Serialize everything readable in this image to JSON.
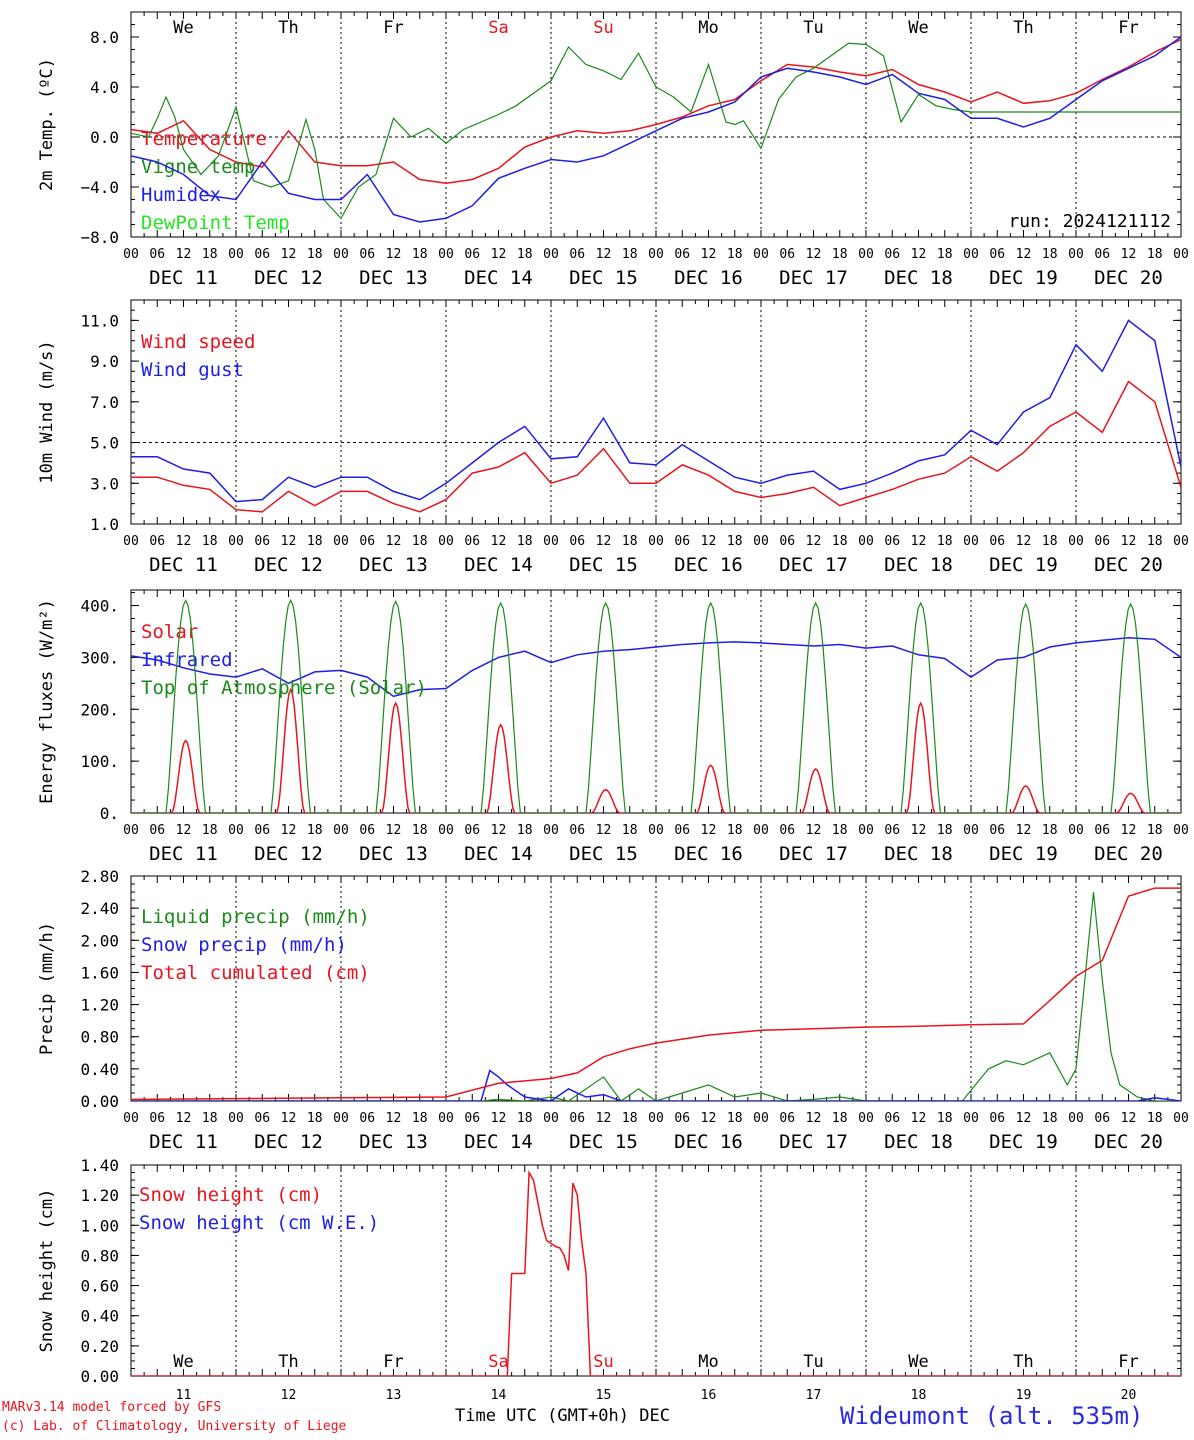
{
  "colors": {
    "red": "#e8141e",
    "green": "#1a8a1a",
    "blue": "#1e1ee6",
    "lime": "#22e622",
    "black": "#000000",
    "title": "#2a2ae0"
  },
  "days": {
    "weekdays": [
      "We",
      "Th",
      "Fr",
      "Sa",
      "Su",
      "Mo",
      "Tu",
      "We",
      "Th",
      "Fr"
    ],
    "weekend_flags": [
      false,
      false,
      false,
      true,
      true,
      false,
      false,
      false,
      false,
      false
    ],
    "dates": [
      "DEC 11",
      "DEC 12",
      "DEC 13",
      "DEC 14",
      "DEC 15",
      "DEC 16",
      "DEC 17",
      "DEC 18",
      "DEC 19",
      "DEC 20"
    ],
    "day_numbers": [
      "11",
      "12",
      "13",
      "14",
      "15",
      "16",
      "17",
      "18",
      "19",
      "20"
    ],
    "hour_labels": [
      "00",
      "06",
      "12",
      "18"
    ],
    "final_hour_label": "00"
  },
  "footer": {
    "model_line1": "MARv3.14 model forced by GFS",
    "model_line2": "(c) Lab. of Climatology, University of Liege",
    "x_axis_title": "Time UTC (GMT+0h)",
    "x_axis_month": "DEC",
    "station": "Wideumont (alt. 535m)"
  },
  "chart_data": [
    {
      "type": "line",
      "ylabel": "2m Temp. (ºC)",
      "ylim": [
        -8,
        10
      ],
      "yticks": [
        -8,
        -4,
        0,
        4,
        8
      ],
      "ytick_labels": [
        "−8.0",
        "−4.0",
        "0.0",
        "4.0",
        "8.0"
      ],
      "ref_line": 0,
      "run_label": "run: 2024121112",
      "series": [
        {
          "name": "Temperature",
          "color": "red",
          "x": [
            0,
            6,
            12,
            18,
            24,
            30,
            36,
            42,
            48,
            54,
            60,
            66,
            72,
            78,
            84,
            90,
            96,
            102,
            108,
            114,
            120,
            126,
            132,
            138,
            144,
            150,
            156,
            162,
            168,
            174,
            180,
            186,
            192,
            198,
            204,
            210,
            216,
            222,
            228,
            234,
            240
          ],
          "values": [
            0.6,
            0.3,
            1.3,
            -1.0,
            -2.0,
            -2.4,
            0.5,
            -2.0,
            -2.3,
            -2.3,
            -2.0,
            -3.4,
            -3.7,
            -3.4,
            -2.5,
            -0.8,
            0.0,
            0.5,
            0.3,
            0.5,
            1.0,
            1.6,
            2.5,
            3.0,
            4.5,
            5.8,
            5.6,
            5.2,
            4.9,
            5.4,
            4.2,
            3.6,
            2.8,
            3.6,
            2.7,
            2.9,
            3.5,
            4.6,
            5.6,
            6.8,
            7.8
          ]
        },
        {
          "name": "Vigne temp",
          "color": "green",
          "x": [
            0,
            6,
            9,
            12,
            15,
            18,
            24,
            30,
            36,
            42,
            48,
            54,
            60,
            63,
            66,
            72,
            78,
            84,
            90,
            96,
            102,
            108,
            114,
            120,
            126,
            132,
            138,
            144,
            150,
            156,
            162,
            168,
            174,
            180,
            186,
            192,
            198,
            204,
            207,
            210,
            216,
            222,
            228,
            234,
            240,
            246,
            252,
            258,
            264,
            270,
            276,
            282,
            288,
            294,
            300,
            306,
            312,
            318,
            324,
            330,
            336,
            342,
            348,
            354,
            360
          ],
          "values": [
            0.3,
            0.0,
            1.5,
            3.2,
            1.6,
            -1.0,
            -3.0,
            -1.5,
            2.4,
            -3.5,
            -4.0,
            -3.5,
            1.4,
            -1.0,
            -5.0,
            -6.5,
            -4.0,
            -3.0,
            1.5,
            0.0,
            0.7,
            -0.5,
            0.6,
            1.2,
            1.8,
            2.5,
            3.5,
            4.5,
            7.2,
            5.8,
            5.3,
            4.6,
            6.7,
            4.0,
            3.2,
            2.0,
            5.8,
            1.2,
            1.0,
            1.3,
            -0.9,
            3.0,
            4.8,
            5.5,
            6.5,
            7.5,
            7.4,
            6.5,
            1.2,
            3.4,
            2.5,
            2.2,
            2.0,
            2.0,
            2.0,
            2.0,
            2.0,
            2.0,
            2.0,
            2.0,
            2.0,
            2.0,
            2.0,
            2.0,
            2.0
          ],
          "x_max": 354
        },
        {
          "name": "Humidex",
          "color": "blue",
          "x": [
            0,
            6,
            12,
            18,
            24,
            30,
            36,
            42,
            48,
            54,
            60,
            66,
            72,
            78,
            84,
            90,
            96,
            102,
            108,
            114,
            120,
            126,
            132,
            138,
            144,
            150,
            156,
            162,
            168,
            174,
            180,
            186,
            192,
            198,
            204,
            210,
            216,
            222,
            228,
            234,
            240
          ],
          "values": [
            -1.5,
            -2.0,
            -3.0,
            -4.7,
            -5.0,
            -2.0,
            -4.5,
            -5.0,
            -5.0,
            -3.0,
            -6.2,
            -6.8,
            -6.5,
            -5.5,
            -3.3,
            -2.5,
            -1.8,
            -2.0,
            -1.5,
            -0.5,
            0.5,
            1.5,
            2.0,
            2.8,
            4.8,
            5.5,
            5.2,
            4.8,
            4.2,
            5.0,
            3.5,
            3.0,
            1.5,
            1.5,
            0.8,
            1.5,
            3.0,
            4.5,
            5.5,
            6.5,
            8.0
          ]
        },
        {
          "name": "DewPoint Temp",
          "color": "lime",
          "x": [],
          "values": []
        }
      ]
    },
    {
      "type": "line",
      "ylabel": "10m Wind (m/s)",
      "ylim": [
        1,
        12
      ],
      "yticks": [
        1,
        3,
        5,
        7,
        9,
        11
      ],
      "ytick_labels": [
        "1.0",
        "3.0",
        "5.0",
        "7.0",
        "9.0",
        "11.0"
      ],
      "ref_line": 5,
      "series": [
        {
          "name": "Wind speed",
          "color": "red",
          "x": [
            0,
            6,
            12,
            18,
            24,
            30,
            36,
            42,
            48,
            54,
            60,
            66,
            72,
            78,
            84,
            90,
            96,
            102,
            108,
            114,
            120,
            126,
            132,
            138,
            144,
            150,
            156,
            162,
            168,
            174,
            180,
            186,
            192,
            198,
            204,
            210,
            216,
            222,
            228,
            234,
            240
          ],
          "values": [
            3.3,
            3.3,
            2.9,
            2.7,
            1.7,
            1.6,
            2.6,
            1.9,
            2.6,
            2.6,
            2.0,
            1.6,
            2.2,
            3.5,
            3.8,
            4.5,
            3.0,
            3.4,
            4.7,
            3.0,
            3.0,
            3.9,
            3.4,
            2.6,
            2.3,
            2.5,
            2.8,
            1.9,
            2.3,
            2.7,
            3.2,
            3.5,
            4.3,
            3.6,
            4.5,
            5.8,
            6.5,
            5.5,
            8.0,
            7.0,
            2.8
          ]
        },
        {
          "name": "Wind gust",
          "color": "blue",
          "x": [
            0,
            6,
            12,
            18,
            24,
            30,
            36,
            42,
            48,
            54,
            60,
            66,
            72,
            78,
            84,
            90,
            96,
            102,
            108,
            114,
            120,
            126,
            132,
            138,
            144,
            150,
            156,
            162,
            168,
            174,
            180,
            186,
            192,
            198,
            204,
            210,
            216,
            222,
            228,
            234,
            240
          ],
          "values": [
            4.3,
            4.3,
            3.7,
            3.5,
            2.1,
            2.2,
            3.3,
            2.8,
            3.3,
            3.3,
            2.6,
            2.2,
            3.0,
            4.0,
            5.0,
            5.8,
            4.2,
            4.3,
            6.2,
            4.0,
            3.9,
            4.9,
            4.1,
            3.3,
            3.0,
            3.4,
            3.6,
            2.7,
            3.0,
            3.5,
            4.1,
            4.4,
            5.6,
            4.9,
            6.5,
            7.2,
            9.8,
            8.5,
            11.0,
            10.0,
            3.8
          ]
        }
      ]
    },
    {
      "type": "line",
      "ylabel": "Energy fluxes (W/m²)",
      "ylim": [
        0,
        430
      ],
      "yticks": [
        0,
        100,
        200,
        300,
        400
      ],
      "ytick_labels": [
        "0.",
        "100.",
        "200.",
        "300.",
        "400."
      ],
      "series": [
        {
          "name": "Solar",
          "color": "red",
          "peaks": [
            140,
            238,
            212,
            170,
            45,
            92,
            85,
            212,
            52,
            38
          ]
        },
        {
          "name": "Infrared",
          "color": "blue",
          "x": [
            0,
            6,
            12,
            18,
            24,
            30,
            36,
            42,
            48,
            54,
            60,
            66,
            72,
            78,
            84,
            90,
            96,
            102,
            108,
            114,
            120,
            126,
            132,
            138,
            144,
            150,
            156,
            162,
            168,
            174,
            180,
            186,
            192,
            198,
            204,
            210,
            216,
            222,
            228,
            234,
            240
          ],
          "values": [
            303,
            295,
            280,
            268,
            262,
            278,
            250,
            272,
            275,
            262,
            225,
            238,
            240,
            275,
            300,
            312,
            290,
            305,
            312,
            315,
            320,
            325,
            328,
            330,
            328,
            325,
            322,
            325,
            318,
            322,
            305,
            298,
            262,
            295,
            300,
            320,
            328,
            333,
            338,
            335,
            300
          ]
        },
        {
          "name": "Top of Atmosphere (Solar)",
          "color": "green",
          "peaks": [
            410,
            410,
            408,
            405,
            405,
            405,
            405,
            405,
            403,
            403
          ]
        }
      ]
    },
    {
      "type": "line",
      "ylabel": "Precip (mm/h)",
      "ylim": [
        0,
        2.8
      ],
      "yticks": [
        0,
        0.4,
        0.8,
        1.2,
        1.6,
        2.0,
        2.4,
        2.8
      ],
      "ytick_labels": [
        "0.00",
        "0.40",
        "0.80",
        "1.20",
        "1.60",
        "2.00",
        "2.40",
        "2.80"
      ],
      "series": [
        {
          "name": "Liquid precip (mm/h)",
          "color": "green",
          "x": [
            0,
            60,
            80,
            84,
            90,
            96,
            100,
            108,
            112,
            116,
            120,
            126,
            132,
            138,
            144,
            150,
            156,
            162,
            168,
            176,
            182,
            190,
            196,
            200,
            204,
            210,
            214,
            216,
            220,
            222,
            224,
            226,
            230,
            234,
            240
          ],
          "values": [
            0.0,
            0.0,
            0.0,
            0.02,
            0.0,
            0.05,
            0.0,
            0.3,
            0.0,
            0.15,
            0.0,
            0.1,
            0.2,
            0.05,
            0.1,
            0.0,
            0.02,
            0.05,
            0.0,
            0.0,
            0.0,
            0.0,
            0.4,
            0.5,
            0.45,
            0.6,
            0.2,
            0.4,
            2.6,
            1.5,
            0.6,
            0.2,
            0.05,
            0.0,
            0.0
          ]
        },
        {
          "name": "Snow precip (mm/h)",
          "color": "blue",
          "x": [
            0,
            80,
            82,
            84,
            86,
            90,
            96,
            100,
            104,
            108,
            112,
            120,
            204,
            230,
            234,
            240
          ],
          "values": [
            0.0,
            0.0,
            0.38,
            0.3,
            0.2,
            0.05,
            0.0,
            0.15,
            0.05,
            0.08,
            0.0,
            0.0,
            0.0,
            0.0,
            0.04,
            0.0
          ]
        },
        {
          "name": "Total cumulated (cm)",
          "color": "red",
          "x": [
            0,
            24,
            48,
            72,
            84,
            90,
            96,
            102,
            108,
            114,
            120,
            132,
            144,
            156,
            168,
            180,
            192,
            204,
            210,
            216,
            222,
            228,
            234,
            240
          ],
          "values": [
            0.02,
            0.03,
            0.04,
            0.05,
            0.22,
            0.25,
            0.28,
            0.35,
            0.55,
            0.65,
            0.72,
            0.82,
            0.88,
            0.9,
            0.92,
            0.93,
            0.95,
            0.96,
            1.25,
            1.55,
            1.75,
            2.55,
            2.65,
            2.65
          ]
        }
      ]
    },
    {
      "type": "line",
      "ylabel": "Snow height (cm)",
      "ylim": [
        0,
        1.4
      ],
      "yticks": [
        0,
        0.2,
        0.4,
        0.6,
        0.8,
        1.0,
        1.2,
        1.4
      ],
      "ytick_labels": [
        "0.00",
        "0.20",
        "0.40",
        "0.60",
        "0.80",
        "1.00",
        "1.20",
        "1.40"
      ],
      "series": [
        {
          "name": "Snow height (cm)",
          "color": "red",
          "x": [
            0,
            86,
            87,
            88,
            90,
            91,
            92,
            93,
            94,
            95,
            96,
            97,
            98,
            99,
            100,
            101,
            102,
            103,
            104,
            105,
            106,
            240
          ],
          "values": [
            0.0,
            0.0,
            0.68,
            0.68,
            0.68,
            1.35,
            1.3,
            1.15,
            1.0,
            0.9,
            0.88,
            0.86,
            0.85,
            0.8,
            0.7,
            1.28,
            1.2,
            0.9,
            0.68,
            0.0,
            0.0,
            0.0
          ]
        },
        {
          "name": "Snow height (cm W.E.)",
          "color": "blue",
          "x": [],
          "values": []
        }
      ]
    }
  ]
}
